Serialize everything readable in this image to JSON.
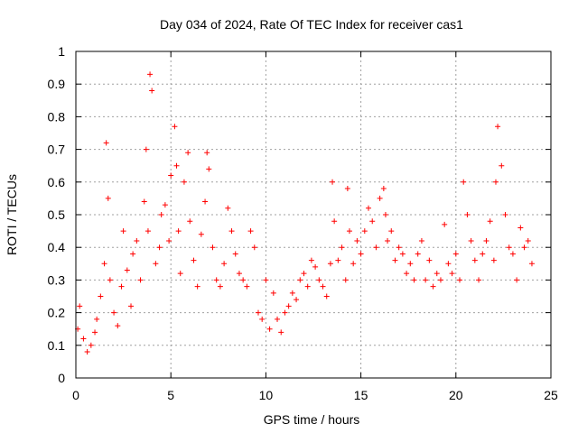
{
  "chart_data": {
    "type": "scatter",
    "title": "Day 034 of 2024, Rate Of TEC Index for receiver cas1",
    "xlabel": "GPS time / hours",
    "ylabel": "ROTI / TECUs",
    "xlim": [
      0,
      25
    ],
    "ylim": [
      0,
      1
    ],
    "x_ticks": [
      "0",
      "5",
      "10",
      "15",
      "20",
      "25"
    ],
    "y_ticks": [
      "0",
      "0.1",
      "0.2",
      "0.3",
      "0.4",
      "0.5",
      "0.6",
      "0.7",
      "0.8",
      "0.9",
      "1"
    ],
    "grid": true,
    "marker": "+",
    "marker_color": "#ff0000",
    "series": [
      {
        "x": [
          0.1,
          0.2,
          0.4,
          0.6,
          0.8,
          1.0,
          1.1,
          1.3,
          1.5,
          1.6,
          1.7,
          1.8,
          2.0,
          2.2,
          2.4,
          2.5,
          2.7,
          2.9,
          3.0,
          3.2,
          3.4,
          3.6,
          3.7,
          3.8,
          3.9,
          4.0,
          4.2,
          4.4,
          4.5,
          4.7,
          4.9,
          5.0,
          5.2,
          5.3,
          5.4,
          5.5,
          5.7,
          5.9,
          6.0,
          6.2,
          6.4,
          6.6,
          6.8,
          6.9,
          7.0,
          7.2,
          7.4,
          7.6,
          7.8,
          8.0,
          8.2,
          8.4,
          8.6,
          8.8,
          9.0,
          9.2,
          9.4,
          9.6,
          9.8,
          10.0,
          10.2,
          10.4,
          10.6,
          10.8,
          11.0,
          11.2,
          11.4,
          11.6,
          11.8,
          12.0,
          12.2,
          12.4,
          12.6,
          12.8,
          13.0,
          13.2,
          13.4,
          13.5,
          13.6,
          13.8,
          14.0,
          14.2,
          14.3,
          14.4,
          14.6,
          14.8,
          15.0,
          15.2,
          15.4,
          15.6,
          15.8,
          16.0,
          16.2,
          16.3,
          16.4,
          16.6,
          16.8,
          17.0,
          17.2,
          17.4,
          17.6,
          17.8,
          18.0,
          18.2,
          18.4,
          18.6,
          18.8,
          19.0,
          19.2,
          19.4,
          19.6,
          19.8,
          20.0,
          20.2,
          20.4,
          20.6,
          20.8,
          21.0,
          21.2,
          21.4,
          21.6,
          21.8,
          22.0,
          22.1,
          22.2,
          22.4,
          22.6,
          22.8,
          23.0,
          23.2,
          23.4,
          23.6,
          23.8,
          24.0
        ],
        "y": [
          0.15,
          0.22,
          0.12,
          0.08,
          0.1,
          0.14,
          0.18,
          0.25,
          0.35,
          0.72,
          0.55,
          0.3,
          0.2,
          0.16,
          0.28,
          0.45,
          0.33,
          0.22,
          0.38,
          0.42,
          0.3,
          0.54,
          0.7,
          0.45,
          0.93,
          0.88,
          0.35,
          0.4,
          0.5,
          0.53,
          0.42,
          0.62,
          0.77,
          0.65,
          0.45,
          0.32,
          0.6,
          0.69,
          0.48,
          0.36,
          0.28,
          0.44,
          0.54,
          0.69,
          0.64,
          0.4,
          0.3,
          0.28,
          0.35,
          0.52,
          0.45,
          0.38,
          0.32,
          0.3,
          0.28,
          0.45,
          0.4,
          0.2,
          0.18,
          0.3,
          0.15,
          0.26,
          0.18,
          0.14,
          0.2,
          0.22,
          0.26,
          0.24,
          0.3,
          0.32,
          0.28,
          0.36,
          0.34,
          0.3,
          0.28,
          0.25,
          0.35,
          0.6,
          0.48,
          0.36,
          0.4,
          0.3,
          0.58,
          0.45,
          0.35,
          0.42,
          0.38,
          0.45,
          0.52,
          0.48,
          0.4,
          0.55,
          0.58,
          0.5,
          0.42,
          0.45,
          0.36,
          0.4,
          0.38,
          0.32,
          0.35,
          0.3,
          0.38,
          0.42,
          0.3,
          0.36,
          0.28,
          0.32,
          0.3,
          0.47,
          0.35,
          0.32,
          0.38,
          0.3,
          0.6,
          0.5,
          0.42,
          0.36,
          0.3,
          0.38,
          0.42,
          0.48,
          0.36,
          0.6,
          0.77,
          0.65,
          0.5,
          0.4,
          0.38,
          0.3,
          0.46,
          0.4,
          0.42,
          0.35
        ]
      }
    ]
  }
}
